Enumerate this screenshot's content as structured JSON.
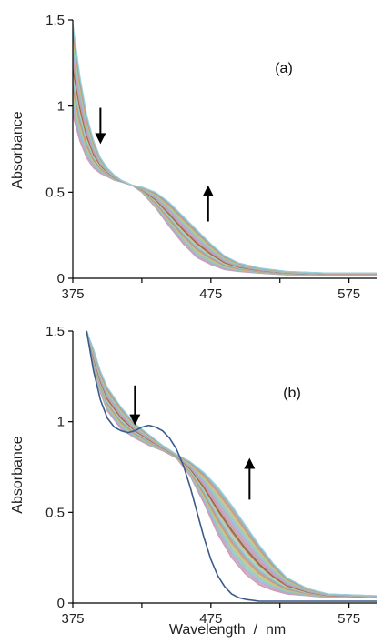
{
  "chart_data": [
    {
      "type": "line",
      "panel_label": "(a)",
      "ylabel": "Absorbance",
      "xlabel": "",
      "xlim": [
        375,
        595
      ],
      "ylim": [
        0,
        1.5
      ],
      "x_ticks": [
        375,
        475,
        575
      ],
      "y_ticks": [
        0,
        0.5,
        1,
        1.5
      ],
      "y_tick_labels": [
        "0",
        "0.5",
        "1",
        "1.5"
      ],
      "isosbestic_point": {
        "x": 418,
        "y": 0.54
      },
      "first_spectrum": {
        "x": [
          375,
          380,
          385,
          390,
          395,
          400,
          405,
          410,
          418,
          425,
          435,
          445,
          455,
          465,
          475,
          485,
          495,
          510,
          530,
          560,
          595
        ],
        "y": [
          0.95,
          0.8,
          0.7,
          0.64,
          0.61,
          0.59,
          0.57,
          0.56,
          0.54,
          0.5,
          0.41,
          0.3,
          0.2,
          0.12,
          0.08,
          0.05,
          0.04,
          0.03,
          0.02,
          0.02,
          0.02
        ]
      },
      "last_spectrum": {
        "x": [
          375,
          380,
          385,
          390,
          395,
          400,
          405,
          410,
          418,
          425,
          435,
          445,
          455,
          465,
          475,
          485,
          495,
          510,
          530,
          560,
          595
        ],
        "y": [
          1.48,
          1.18,
          0.95,
          0.8,
          0.7,
          0.64,
          0.6,
          0.57,
          0.54,
          0.53,
          0.5,
          0.44,
          0.36,
          0.28,
          0.2,
          0.13,
          0.09,
          0.06,
          0.04,
          0.03,
          0.03
        ]
      },
      "n_intermediate_spectra": 30,
      "arrows": [
        {
          "direction": "down",
          "x": 395,
          "y_from": 0.99,
          "y_to": 0.78
        },
        {
          "direction": "up",
          "x": 473,
          "y_from": 0.33,
          "y_to": 0.54
        }
      ]
    },
    {
      "type": "line",
      "panel_label": "(b)",
      "ylabel": "Absorbance",
      "xlabel": "Wavelength  /  nm",
      "xlim": [
        375,
        595
      ],
      "ylim": [
        0,
        1.5
      ],
      "x_ticks": [
        375,
        475,
        575
      ],
      "y_ticks": [
        0,
        0.5,
        1,
        1.5
      ],
      "y_tick_labels": [
        "0",
        "0.5",
        "1",
        "1.5"
      ],
      "first_spectrum": {
        "x": [
          385,
          390,
          395,
          400,
          405,
          410,
          415,
          420,
          425,
          430,
          435,
          440,
          445,
          450,
          455,
          460,
          465,
          470,
          475,
          480,
          485,
          490,
          495,
          500,
          510,
          520,
          540,
          560,
          595
        ],
        "y": [
          1.5,
          1.28,
          1.12,
          1.02,
          0.97,
          0.95,
          0.94,
          0.95,
          0.97,
          0.98,
          0.97,
          0.95,
          0.91,
          0.85,
          0.76,
          0.64,
          0.5,
          0.36,
          0.24,
          0.15,
          0.09,
          0.05,
          0.03,
          0.02,
          0.01,
          0.01,
          0.01,
          0.01,
          0.01
        ],
        "color": "#3a5a8c"
      },
      "start_spectrum": {
        "x": [
          385,
          390,
          395,
          400,
          410,
          420,
          430,
          440,
          450,
          460,
          470,
          480,
          490,
          500,
          510,
          520,
          530,
          545,
          560,
          595
        ],
        "y": [
          1.5,
          1.3,
          1.16,
          1.06,
          0.96,
          0.91,
          0.87,
          0.84,
          0.8,
          0.7,
          0.55,
          0.38,
          0.25,
          0.16,
          0.1,
          0.07,
          0.05,
          0.04,
          0.03,
          0.03
        ]
      },
      "last_spectrum": {
        "x": [
          385,
          390,
          395,
          400,
          410,
          420,
          430,
          440,
          450,
          460,
          470,
          480,
          490,
          500,
          510,
          520,
          530,
          545,
          560,
          595
        ],
        "y": [
          1.5,
          1.4,
          1.28,
          1.19,
          1.08,
          0.99,
          0.93,
          0.87,
          0.82,
          0.78,
          0.72,
          0.64,
          0.54,
          0.43,
          0.32,
          0.22,
          0.14,
          0.08,
          0.05,
          0.04
        ]
      },
      "n_intermediate_spectra": 30,
      "arrows": [
        {
          "direction": "down",
          "x": 420,
          "y_from": 1.2,
          "y_to": 0.98
        },
        {
          "direction": "up",
          "x": 503,
          "y_from": 0.57,
          "y_to": 0.8
        }
      ]
    }
  ],
  "colors": {
    "axis": "#000000",
    "arrow": "#000000",
    "series_palette": [
      "#c98fa6",
      "#d4a0b8",
      "#b7a2c9",
      "#9fb4d6",
      "#8fc3d1",
      "#96c8b4",
      "#a9c98f",
      "#c8c48a",
      "#d3a77e",
      "#c48b6e",
      "#a9a9a9",
      "#7fb2c9",
      "#9ad1de",
      "#b0cfa0",
      "#d7b08a",
      "#8f6a4a",
      "#a05030",
      "#b0b0b0"
    ]
  }
}
